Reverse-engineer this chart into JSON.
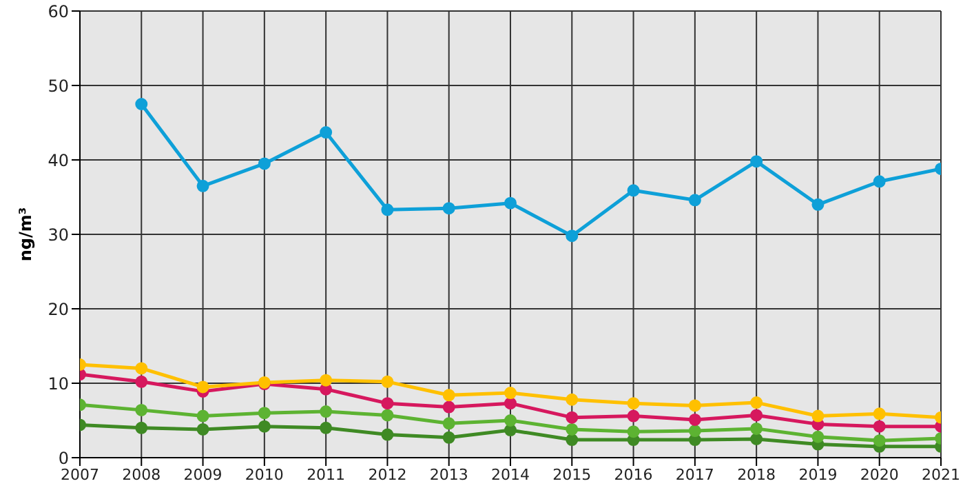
{
  "chart_data": {
    "type": "line",
    "ylabel": "ng/m³",
    "categories": [
      "2007",
      "2008",
      "2009",
      "2010",
      "2011",
      "2012",
      "2013",
      "2014",
      "2015",
      "2016",
      "2017",
      "2018",
      "2019",
      "2020",
      "2021"
    ],
    "series": [
      {
        "color": "#0ea0d8",
        "values": [
          null,
          47.5,
          36.5,
          39.5,
          43.7,
          33.3,
          33.5,
          34.2,
          29.8,
          35.9,
          34.6,
          39.8,
          34.0,
          37.1,
          38.8
        ]
      },
      {
        "color": "#ffc000",
        "values": [
          12.5,
          12.0,
          9.5,
          10.1,
          10.4,
          10.2,
          8.4,
          8.7,
          7.8,
          7.3,
          7.0,
          7.4,
          5.6,
          5.9,
          5.4
        ]
      },
      {
        "color": "#d6185e",
        "values": [
          11.2,
          10.2,
          8.9,
          9.9,
          9.2,
          7.3,
          6.8,
          7.3,
          5.4,
          5.6,
          5.1,
          5.7,
          4.5,
          4.2,
          4.2
        ]
      },
      {
        "color": "#5db332",
        "values": [
          7.1,
          6.4,
          5.6,
          6.0,
          6.2,
          5.7,
          4.6,
          5.0,
          3.8,
          3.5,
          3.6,
          3.9,
          2.8,
          2.3,
          2.6
        ]
      },
      {
        "color": "#3f8a24",
        "values": [
          4.4,
          4.0,
          3.8,
          4.2,
          4.0,
          3.1,
          2.7,
          3.7,
          2.4,
          2.4,
          2.4,
          2.5,
          1.8,
          1.5,
          1.5
        ]
      }
    ],
    "ylim": [
      0,
      60
    ],
    "yticks": [
      0,
      10,
      20,
      30,
      40,
      50,
      60
    ],
    "grid": true,
    "marker": "circle",
    "line_style": "solid"
  }
}
